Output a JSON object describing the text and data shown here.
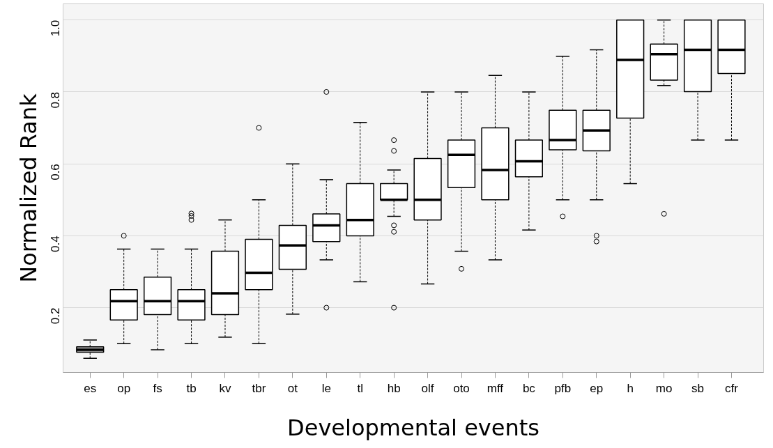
{
  "chart_data": {
    "type": "box",
    "xlabel": "Developmental events",
    "ylabel": "Normalized Rank",
    "categories": [
      "es",
      "op",
      "fs",
      "tb",
      "kv",
      "tbr",
      "ot",
      "le",
      "tl",
      "hb",
      "olf",
      "oto",
      "mff",
      "bc",
      "pfb",
      "ep",
      "h",
      "mo",
      "sb",
      "cfr"
    ],
    "colors": [
      "#b3b3b3",
      "#ffffff",
      "#ffffff",
      "#ffffff",
      "#ffffff",
      "#ffffff",
      "#ffffff",
      "#ffffff",
      "#ffffff",
      "#ffffff",
      "#ffffff",
      "#ffffff",
      "#ffffff",
      "#ffffff",
      "#ffffff",
      "#ffffff",
      "#ffffff",
      "#ffffff",
      "#ffffff",
      "#ffffff"
    ],
    "boxes": [
      {
        "low": 0.059,
        "q1": 0.076,
        "median": 0.083,
        "q3": 0.091,
        "high": 0.11
      },
      {
        "low": 0.1,
        "q1": 0.166,
        "median": 0.218,
        "q3": 0.25,
        "high": 0.363,
        "outliers": [
          0.4
        ]
      },
      {
        "low": 0.083,
        "q1": 0.181,
        "median": 0.218,
        "q3": 0.285,
        "high": 0.363
      },
      {
        "low": 0.1,
        "q1": 0.166,
        "median": 0.218,
        "q3": 0.25,
        "high": 0.363,
        "outliers": [
          0.462,
          0.455,
          0.444
        ]
      },
      {
        "low": 0.118,
        "q1": 0.181,
        "median": 0.24,
        "q3": 0.357,
        "high": 0.444
      },
      {
        "low": 0.1,
        "q1": 0.25,
        "median": 0.297,
        "q3": 0.39,
        "high": 0.5,
        "outliers": [
          0.7
        ]
      },
      {
        "low": 0.182,
        "q1": 0.307,
        "median": 0.373,
        "q3": 0.429,
        "high": 0.6
      },
      {
        "low": 0.333,
        "q1": 0.384,
        "median": 0.429,
        "q3": 0.461,
        "high": 0.556,
        "outliers": [
          0.8,
          0.2
        ]
      },
      {
        "low": 0.272,
        "q1": 0.4,
        "median": 0.444,
        "q3": 0.545,
        "high": 0.715
      },
      {
        "low": 0.454,
        "q1": 0.5,
        "median": 0.5,
        "q3": 0.545,
        "high": 0.583,
        "outliers": [
          0.666,
          0.636,
          0.429,
          0.411,
          0.2
        ]
      },
      {
        "low": 0.266,
        "q1": 0.444,
        "median": 0.5,
        "q3": 0.615,
        "high": 0.8
      },
      {
        "low": 0.357,
        "q1": 0.534,
        "median": 0.625,
        "q3": 0.666,
        "high": 0.8,
        "outliers": [
          0.308
        ]
      },
      {
        "low": 0.333,
        "q1": 0.5,
        "median": 0.583,
        "q3": 0.7,
        "high": 0.846
      },
      {
        "low": 0.416,
        "q1": 0.564,
        "median": 0.607,
        "q3": 0.666,
        "high": 0.8
      },
      {
        "low": 0.5,
        "q1": 0.639,
        "median": 0.666,
        "q3": 0.749,
        "high": 0.899,
        "outliers": [
          0.454
        ]
      },
      {
        "low": 0.5,
        "q1": 0.636,
        "median": 0.693,
        "q3": 0.749,
        "high": 0.917,
        "outliers": [
          0.4,
          0.384
        ]
      },
      {
        "low": 0.545,
        "q1": 0.727,
        "median": 0.889,
        "q3": 1.0,
        "high": 1.0
      },
      {
        "low": 0.818,
        "q1": 0.833,
        "median": 0.905,
        "q3": 0.933,
        "high": 1.0,
        "outliers": [
          0.461
        ]
      },
      {
        "low": 0.666,
        "q1": 0.801,
        "median": 0.917,
        "q3": 1.0,
        "high": 1.0
      },
      {
        "low": 0.666,
        "q1": 0.851,
        "median": 0.917,
        "q3": 1.0,
        "high": 1.0
      }
    ],
    "ylim": [
      0.02,
      1.045
    ],
    "yticks": [
      0.2,
      0.4,
      0.6,
      0.8,
      {
        "value": 1.0,
        "label": "1.0"
      }
    ],
    "grid": "y"
  }
}
